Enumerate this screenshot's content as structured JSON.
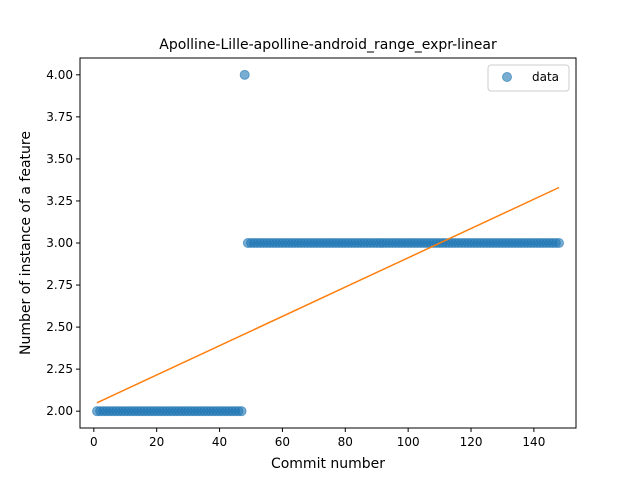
{
  "chart_data": {
    "type": "scatter",
    "title": "Apolline-Lille-apolline-android_range_expr-linear",
    "xlabel": "Commit number",
    "ylabel": "Number of instance of a feature",
    "xlim": [
      -4.4,
      153.4
    ],
    "ylim": [
      1.9,
      4.1
    ],
    "xticks": [
      0,
      20,
      40,
      60,
      80,
      100,
      120,
      140
    ],
    "yticks": [
      2.0,
      2.25,
      2.5,
      2.75,
      3.0,
      3.25,
      3.5,
      3.75,
      4.0
    ],
    "xtick_labels": [
      "0",
      "20",
      "40",
      "60",
      "80",
      "100",
      "120",
      "140"
    ],
    "ytick_labels": [
      "2.00",
      "2.25",
      "2.50",
      "2.75",
      "3.00",
      "3.25",
      "3.50",
      "3.75",
      "4.00"
    ],
    "legend": {
      "placement": "top-right",
      "entries": [
        "data"
      ]
    },
    "grid": false,
    "colors": {
      "data": "#1f77b4",
      "fit": "#ff7f0e"
    },
    "series": [
      {
        "name": "data",
        "kind": "scatter",
        "segments": [
          {
            "x_start": 1,
            "x_end": 47,
            "y": 2
          },
          {
            "x_start": 48,
            "x_end": 48,
            "y": 4
          },
          {
            "x_start": 49,
            "x_end": 148,
            "y": 3
          }
        ]
      },
      {
        "kind": "line",
        "x": [
          1,
          148
        ],
        "y": [
          2.05,
          3.33
        ]
      }
    ]
  }
}
